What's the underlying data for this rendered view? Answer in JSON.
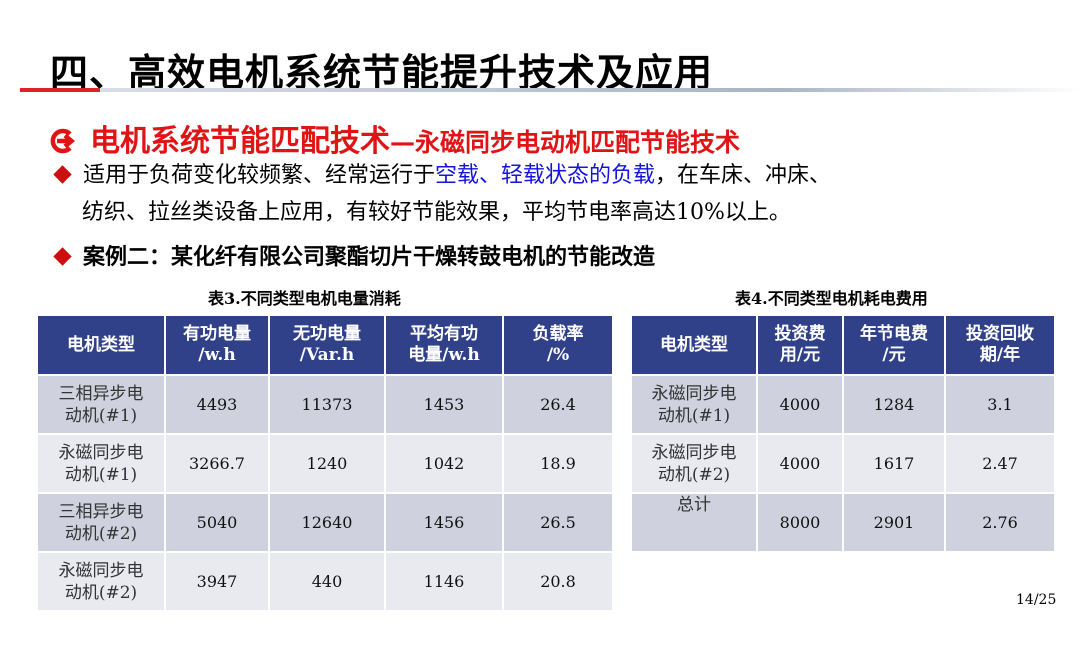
{
  "title": "四、高效电机系统节能提升技术及应用",
  "subheading": {
    "main": "电机系统节能匹配技术",
    "rest": "—永磁同步电动机匹配节能技术"
  },
  "bullet1": {
    "before": "适用于负荷变化较频繁、经常运行于",
    "highlight": "空载、轻载状态的负载",
    "after": "，在车床、冲床、",
    "line2": "纺织、拉丝类设备上应用，有较好节能效果，平均节电率高达10%以上。"
  },
  "bullet2": "案例二：某化纤有限公司聚酯切片干燥转鼓电机的节能改造",
  "table3": {
    "caption": "表3.不同类型电机电量消耗",
    "headers": [
      [
        "电机类型"
      ],
      [
        "有功电量",
        "/w.h"
      ],
      [
        "无功电量",
        "/Var.h"
      ],
      [
        "平均有功",
        "电量/w.h"
      ],
      [
        "负载率",
        "/%"
      ]
    ],
    "rows": [
      [
        [
          "三相异步电",
          "动机(#1)"
        ],
        "4493",
        "11373",
        "1453",
        "26.4"
      ],
      [
        [
          "永磁同步电",
          "动机(#1)"
        ],
        "3266.7",
        "1240",
        "1042",
        "18.9"
      ],
      [
        [
          "三相异步电",
          "动机(#2)"
        ],
        "5040",
        "12640",
        "1456",
        "26.5"
      ],
      [
        [
          "永磁同步电",
          "动机(#2)"
        ],
        "3947",
        "440",
        "1146",
        "20.8"
      ]
    ]
  },
  "table4": {
    "caption": "表4.不同类型电机耗电费用",
    "headers": [
      [
        "电机类型"
      ],
      [
        "投资费",
        "用/元"
      ],
      [
        "年节电费",
        "/元"
      ],
      [
        "投资回收",
        "期/年"
      ]
    ],
    "rows": [
      [
        [
          "永磁同步电",
          "动机(#1)"
        ],
        "4000",
        "1284",
        "3.1"
      ],
      [
        [
          "永磁同步电",
          "动机(#2)"
        ],
        "4000",
        "1617",
        "2.47"
      ],
      [
        [
          "总计"
        ],
        "8000",
        "2901",
        "2.76"
      ]
    ]
  },
  "page_number": "14/25",
  "colors": {
    "accent_red": "#e01414",
    "header_blue": "#304189",
    "highlight_blue": "#1414dc",
    "row_dark": "#cfd2de",
    "row_light": "#e9eaf0"
  }
}
